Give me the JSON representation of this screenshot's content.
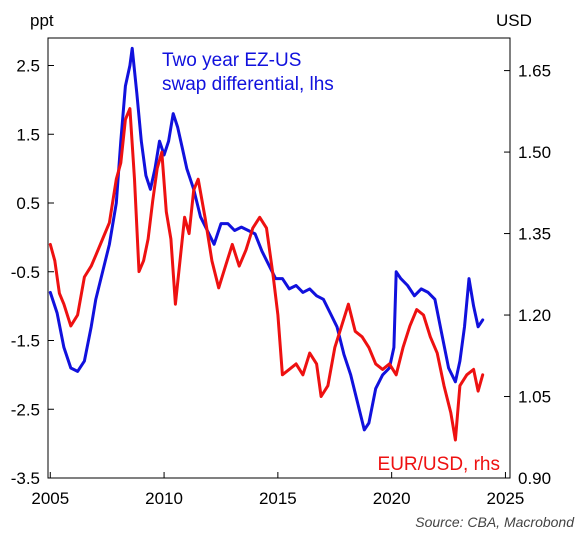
{
  "chart_data": {
    "type": "line",
    "title": "",
    "left_axis": {
      "unit": "ppt",
      "ylim": [
        -3.5,
        2.9
      ],
      "ticks": [
        2.5,
        1.5,
        0.5,
        -0.5,
        -1.5,
        -2.5,
        -3.5
      ],
      "tick_labels": [
        "2.5",
        "1.5",
        "0.5",
        "-0.5",
        "-1.5",
        "-2.5",
        "-3.5"
      ]
    },
    "right_axis": {
      "unit": "USD",
      "ylim": [
        0.9,
        1.71
      ],
      "ticks": [
        1.65,
        1.5,
        1.35,
        1.2,
        1.05,
        0.9
      ],
      "tick_labels": [
        "1.65",
        "1.50",
        "1.35",
        "1.20",
        "1.05",
        "0.90"
      ]
    },
    "x_axis": {
      "xlim": [
        2004.9,
        2025.2
      ],
      "ticks": [
        2005,
        2010,
        2015,
        2020,
        2025
      ],
      "tick_labels": [
        "2005",
        "2010",
        "2015",
        "2020",
        "2025"
      ]
    },
    "grid": false,
    "series": [
      {
        "name": "Two year EZ-US swap differential, lhs",
        "axis": "left",
        "color": "#1111dd",
        "label_lines": [
          "Two year EZ-US",
          "swap differential, lhs"
        ],
        "x": [
          2005.0,
          2005.3,
          2005.6,
          2005.9,
          2006.2,
          2006.5,
          2006.8,
          2007.0,
          2007.3,
          2007.6,
          2007.9,
          2008.1,
          2008.3,
          2008.5,
          2008.6,
          2008.8,
          2009.0,
          2009.2,
          2009.4,
          2009.6,
          2009.8,
          2010.0,
          2010.2,
          2010.4,
          2010.6,
          2010.8,
          2011.0,
          2011.3,
          2011.6,
          2011.9,
          2012.2,
          2012.5,
          2012.8,
          2013.1,
          2013.4,
          2013.7,
          2014.0,
          2014.3,
          2014.6,
          2014.9,
          2015.2,
          2015.5,
          2015.8,
          2016.1,
          2016.4,
          2016.7,
          2017.0,
          2017.3,
          2017.6,
          2017.9,
          2018.2,
          2018.5,
          2018.8,
          2019.0,
          2019.3,
          2019.6,
          2019.9,
          2020.1,
          2020.2,
          2020.4,
          2020.7,
          2021.0,
          2021.3,
          2021.6,
          2021.9,
          2022.2,
          2022.5,
          2022.8,
          2023.0,
          2023.2,
          2023.4,
          2023.6,
          2023.8,
          2024.0
        ],
        "values": [
          -0.8,
          -1.1,
          -1.6,
          -1.9,
          -1.95,
          -1.8,
          -1.3,
          -0.9,
          -0.5,
          -0.1,
          0.5,
          1.4,
          2.2,
          2.5,
          2.75,
          2.1,
          1.4,
          0.9,
          0.7,
          1.0,
          1.4,
          1.2,
          1.4,
          1.8,
          1.6,
          1.3,
          1.0,
          0.7,
          0.3,
          0.1,
          -0.1,
          0.2,
          0.2,
          0.1,
          0.15,
          0.1,
          0.05,
          -0.2,
          -0.4,
          -0.6,
          -0.6,
          -0.75,
          -0.7,
          -0.8,
          -0.75,
          -0.85,
          -0.9,
          -1.1,
          -1.3,
          -1.7,
          -2.0,
          -2.4,
          -2.8,
          -2.7,
          -2.2,
          -2.0,
          -1.9,
          -1.6,
          -0.5,
          -0.6,
          -0.7,
          -0.85,
          -0.75,
          -0.8,
          -0.9,
          -1.4,
          -1.9,
          -2.1,
          -1.8,
          -1.3,
          -0.6,
          -1.0,
          -1.3,
          -1.2
        ]
      },
      {
        "name": "EUR/USD, rhs",
        "axis": "right",
        "color": "#ee1111",
        "label_lines": [
          "EUR/USD, rhs"
        ],
        "x": [
          2005.0,
          2005.2,
          2005.4,
          2005.6,
          2005.9,
          2006.2,
          2006.5,
          2006.8,
          2007.0,
          2007.3,
          2007.6,
          2007.9,
          2008.1,
          2008.3,
          2008.5,
          2008.7,
          2008.9,
          2009.1,
          2009.3,
          2009.5,
          2009.7,
          2009.9,
          2010.1,
          2010.3,
          2010.5,
          2010.7,
          2010.9,
          2011.1,
          2011.3,
          2011.5,
          2011.8,
          2012.1,
          2012.4,
          2012.7,
          2013.0,
          2013.3,
          2013.6,
          2013.9,
          2014.2,
          2014.5,
          2014.8,
          2015.0,
          2015.2,
          2015.5,
          2015.8,
          2016.1,
          2016.4,
          2016.7,
          2016.9,
          2017.2,
          2017.5,
          2017.8,
          2018.1,
          2018.4,
          2018.7,
          2019.0,
          2019.3,
          2019.6,
          2019.9,
          2020.2,
          2020.5,
          2020.8,
          2021.1,
          2021.4,
          2021.7,
          2022.0,
          2022.3,
          2022.6,
          2022.8,
          2023.0,
          2023.3,
          2023.6,
          2023.8,
          2024.0
        ],
        "values": [
          1.33,
          1.3,
          1.24,
          1.22,
          1.18,
          1.2,
          1.27,
          1.29,
          1.31,
          1.34,
          1.37,
          1.45,
          1.48,
          1.56,
          1.58,
          1.45,
          1.28,
          1.3,
          1.34,
          1.41,
          1.47,
          1.5,
          1.39,
          1.34,
          1.22,
          1.3,
          1.38,
          1.35,
          1.43,
          1.45,
          1.38,
          1.3,
          1.25,
          1.29,
          1.33,
          1.29,
          1.32,
          1.36,
          1.38,
          1.36,
          1.27,
          1.2,
          1.09,
          1.1,
          1.11,
          1.09,
          1.13,
          1.11,
          1.05,
          1.07,
          1.14,
          1.18,
          1.22,
          1.17,
          1.16,
          1.14,
          1.11,
          1.1,
          1.11,
          1.09,
          1.14,
          1.18,
          1.21,
          1.2,
          1.16,
          1.13,
          1.07,
          1.02,
          0.97,
          1.07,
          1.09,
          1.1,
          1.06,
          1.09
        ]
      }
    ],
    "source": "Source: CBA, Macrobond"
  }
}
